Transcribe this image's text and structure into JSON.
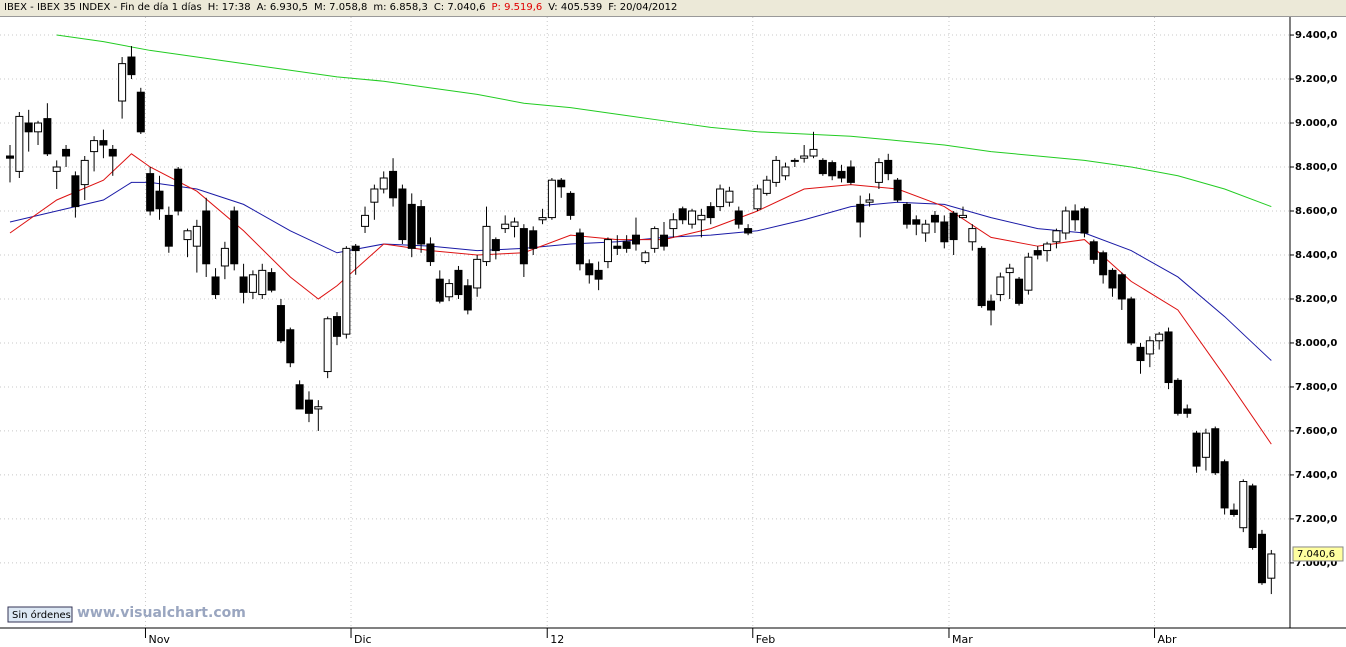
{
  "chart_data": {
    "type": "candlestick",
    "header": [
      {
        "text": "IBEX - IBEX 35 INDEX - Fin de día 1 días",
        "color": "#000000"
      },
      {
        "text": "H: 17:38",
        "color": "#000000"
      },
      {
        "text": "A: 6.930,5",
        "color": "#000000"
      },
      {
        "text": "M: 7.058,8",
        "color": "#000000"
      },
      {
        "text": "m: 6.858,3",
        "color": "#000000"
      },
      {
        "text": "C: 7.040,6",
        "color": "#000000"
      },
      {
        "text": "P: 9.519,6",
        "color": "#e00000"
      },
      {
        "text": "V: 405.539",
        "color": "#000000"
      },
      {
        "text": "F: 20/04/2012",
        "color": "#000000"
      }
    ],
    "orders_label": "Sin órdenes",
    "watermark": "www.visualchart.com",
    "last_price": {
      "value": 7040.6,
      "label": "7.040,6"
    },
    "categories": [
      null,
      null,
      null,
      null,
      null,
      null,
      null,
      null,
      null,
      null,
      null,
      null,
      null,
      null,
      null,
      "Nov",
      null,
      null,
      null,
      null,
      null,
      null,
      null,
      null,
      null,
      null,
      null,
      null,
      null,
      null,
      null,
      null,
      null,
      null,
      null,
      null,
      null,
      "Dic",
      null,
      null,
      null,
      null,
      null,
      null,
      null,
      null,
      null,
      null,
      null,
      null,
      null,
      null,
      null,
      null,
      null,
      null,
      null,
      null,
      "12",
      null,
      null,
      null,
      null,
      null,
      null,
      null,
      null,
      null,
      null,
      null,
      null,
      null,
      null,
      null,
      null,
      null,
      null,
      null,
      null,
      null,
      "Feb",
      null,
      null,
      null,
      null,
      null,
      null,
      null,
      null,
      null,
      null,
      null,
      null,
      null,
      null,
      null,
      null,
      null,
      null,
      null,
      null,
      "Mar",
      null,
      null,
      null,
      null,
      null,
      null,
      null,
      null,
      null,
      null,
      null,
      null,
      null,
      null,
      null,
      null,
      null,
      null,
      null,
      null,
      null,
      "Abr",
      null,
      null,
      null,
      null,
      null,
      null,
      null,
      null,
      null,
      null,
      null,
      null
    ],
    "open": [
      8850,
      8780,
      9000,
      8960,
      9020,
      8780,
      8880,
      8760,
      8720,
      8870,
      8920,
      8880,
      9100,
      9300,
      9140,
      8770,
      8690,
      8580,
      8790,
      8470,
      8440,
      8600,
      8300,
      8350,
      8600,
      8300,
      8230,
      8220,
      8320,
      8170,
      8060,
      7810,
      7740,
      7700,
      7870,
      8120,
      8040,
      8440,
      8530,
      8640,
      8700,
      8780,
      8700,
      8630,
      8620,
      8450,
      8290,
      8210,
      8330,
      8260,
      8250,
      8370,
      8470,
      8520,
      8530,
      8520,
      8510,
      8560,
      8570,
      8740,
      8680,
      8500,
      8360,
      8330,
      8370,
      8440,
      8460,
      8490,
      8370,
      8430,
      8490,
      8520,
      8610,
      8540,
      8560,
      8620,
      8620,
      8640,
      8600,
      8520,
      8610,
      8680,
      8730,
      8760,
      8830,
      8840,
      8850,
      8830,
      8820,
      8780,
      8800,
      8630,
      8640,
      8730,
      8830,
      8740,
      8630,
      8560,
      8500,
      8580,
      8550,
      8590,
      8570,
      8460,
      8430,
      8190,
      8220,
      8320,
      8290,
      8240,
      8420,
      8420,
      8460,
      8500,
      8600,
      8610,
      8460,
      8410,
      8330,
      8310,
      8200,
      7980,
      7950,
      8010,
      8050,
      7830,
      7700,
      7590,
      7480,
      7610,
      7460,
      7240,
      7160,
      7350,
      7130,
      6930.5
    ],
    "high": [
      8900,
      9050,
      9060,
      9010,
      9090,
      8830,
      8900,
      8780,
      8850,
      8940,
      8970,
      8900,
      9300,
      9350,
      9160,
      8800,
      8760,
      8620,
      8800,
      8520,
      8560,
      8660,
      8340,
      8460,
      8620,
      8360,
      8330,
      8360,
      8340,
      8200,
      8070,
      7830,
      7780,
      7740,
      8120,
      8140,
      8440,
      8450,
      8620,
      8720,
      8780,
      8840,
      8720,
      8680,
      8650,
      8480,
      8330,
      8290,
      8350,
      8290,
      8400,
      8620,
      8480,
      8580,
      8570,
      8540,
      8530,
      8610,
      8750,
      8750,
      8690,
      8520,
      8380,
      8370,
      8480,
      8490,
      8490,
      8570,
      8420,
      8530,
      8550,
      8590,
      8620,
      8610,
      8610,
      8640,
      8720,
      8710,
      8620,
      8540,
      8720,
      8760,
      8850,
      8820,
      8840,
      8900,
      8960,
      8840,
      8830,
      8810,
      8830,
      8670,
      8680,
      8840,
      8860,
      8750,
      8640,
      8580,
      8560,
      8600,
      8580,
      8600,
      8620,
      8540,
      8440,
      8220,
      8320,
      8360,
      8300,
      8410,
      8440,
      8460,
      8520,
      8620,
      8630,
      8620,
      8470,
      8420,
      8340,
      8320,
      8210,
      8000,
      8030,
      8050,
      8070,
      7840,
      7720,
      7600,
      7610,
      7620,
      7470,
      7270,
      7380,
      7360,
      7150,
      7058.8
    ],
    "low": [
      8730,
      8750,
      8870,
      8900,
      8850,
      8700,
      8800,
      8570,
      8650,
      8780,
      8840,
      8760,
      9020,
      9200,
      8950,
      8580,
      8560,
      8410,
      8580,
      8390,
      8320,
      8300,
      8200,
      8290,
      8330,
      8180,
      8200,
      8200,
      8230,
      8000,
      7890,
      7700,
      7640,
      7600,
      7840,
      7990,
      8020,
      8310,
      8500,
      8560,
      8680,
      8620,
      8450,
      8390,
      8410,
      8350,
      8180,
      8190,
      8200,
      8130,
      8210,
      8350,
      8380,
      8500,
      8480,
      8300,
      8400,
      8540,
      8560,
      8660,
      8560,
      8330,
      8270,
      8240,
      8340,
      8400,
      8410,
      8420,
      8360,
      8410,
      8420,
      8480,
      8540,
      8520,
      8480,
      8540,
      8600,
      8620,
      8520,
      8490,
      8600,
      8670,
      8710,
      8740,
      8800,
      8820,
      8840,
      8760,
      8740,
      8730,
      8720,
      8480,
      8620,
      8700,
      8740,
      8640,
      8520,
      8490,
      8460,
      8500,
      8430,
      8400,
      8570,
      8420,
      8160,
      8080,
      8190,
      8200,
      8170,
      8220,
      8380,
      8370,
      8430,
      8470,
      8510,
      8480,
      8360,
      8270,
      8210,
      8150,
      7990,
      7860,
      7890,
      7970,
      7790,
      7670,
      7660,
      7410,
      7420,
      7400,
      7220,
      7210,
      7140,
      7060,
      6900,
      6858.3
    ],
    "close": [
      8840,
      9030,
      8960,
      9000,
      8860,
      8800,
      8850,
      8620,
      8830,
      8920,
      8900,
      8850,
      9270,
      9220,
      8960,
      8600,
      8610,
      8440,
      8600,
      8510,
      8530,
      8360,
      8220,
      8430,
      8360,
      8230,
      8310,
      8330,
      8240,
      8010,
      7910,
      7700,
      7680,
      7710,
      8110,
      8030,
      8430,
      8420,
      8580,
      8700,
      8750,
      8660,
      8470,
      8430,
      8450,
      8370,
      8190,
      8270,
      8220,
      8150,
      8380,
      8530,
      8420,
      8540,
      8550,
      8360,
      8430,
      8570,
      8740,
      8710,
      8580,
      8360,
      8310,
      8290,
      8470,
      8430,
      8430,
      8450,
      8410,
      8520,
      8440,
      8560,
      8560,
      8600,
      8580,
      8570,
      8700,
      8690,
      8540,
      8500,
      8700,
      8740,
      8830,
      8800,
      8830,
      8850,
      8880,
      8770,
      8760,
      8750,
      8730,
      8550,
      8650,
      8820,
      8770,
      8650,
      8540,
      8540,
      8540,
      8550,
      8460,
      8470,
      8580,
      8520,
      8170,
      8150,
      8300,
      8340,
      8180,
      8390,
      8400,
      8450,
      8510,
      8600,
      8560,
      8500,
      8380,
      8310,
      8250,
      8200,
      8000,
      7920,
      8010,
      8040,
      7820,
      7680,
      7680,
      7440,
      7590,
      7410,
      7250,
      7220,
      7370,
      7070,
      6910,
      7040.6
    ],
    "series": [
      {
        "color": "#22cc22",
        "x": [
          5,
          10,
          15,
          20,
          25,
          30,
          35,
          40,
          45,
          50,
          55,
          60,
          65,
          70,
          75,
          80,
          85,
          90,
          95,
          100,
          105,
          110,
          115,
          120,
          125,
          130,
          135
        ],
        "values": [
          9400,
          9370,
          9330,
          9300,
          9270,
          9240,
          9210,
          9190,
          9160,
          9130,
          9090,
          9070,
          9040,
          9010,
          8980,
          8960,
          8950,
          8940,
          8920,
          8900,
          8870,
          8850,
          8830,
          8800,
          8760,
          8700,
          8620
        ]
      },
      {
        "color": "#1a1aa6",
        "x": [
          0,
          5,
          10,
          13,
          15,
          20,
          25,
          30,
          35,
          40,
          45,
          50,
          55,
          60,
          65,
          70,
          75,
          80,
          85,
          90,
          95,
          100,
          105,
          110,
          115,
          120,
          125,
          130,
          135
        ],
        "values": [
          8550,
          8600,
          8650,
          8730,
          8730,
          8700,
          8630,
          8510,
          8410,
          8450,
          8440,
          8420,
          8430,
          8450,
          8460,
          8480,
          8490,
          8510,
          8560,
          8620,
          8640,
          8630,
          8570,
          8520,
          8500,
          8420,
          8300,
          8120,
          7920
        ]
      },
      {
        "color": "#dd1111",
        "x": [
          0,
          5,
          10,
          13,
          15,
          20,
          25,
          30,
          33,
          35,
          40,
          45,
          50,
          55,
          60,
          65,
          70,
          75,
          80,
          85,
          90,
          95,
          100,
          105,
          110,
          115,
          120,
          125,
          130,
          135
        ],
        "values": [
          8500,
          8650,
          8740,
          8860,
          8800,
          8690,
          8510,
          8300,
          8200,
          8260,
          8450,
          8420,
          8400,
          8410,
          8490,
          8470,
          8470,
          8520,
          8600,
          8700,
          8720,
          8700,
          8620,
          8480,
          8440,
          8470,
          8280,
          8150,
          7850,
          7540
        ]
      }
    ],
    "xlim": [
      -1.07,
      137
    ],
    "ylim": [
      6704,
      9482
    ],
    "yticks": [
      {
        "value": 7000,
        "label": "7.000,0"
      },
      {
        "value": 7200,
        "label": "7.200,0"
      },
      {
        "value": 7400,
        "label": "7.400,0"
      },
      {
        "value": 7600,
        "label": "7.600,0"
      },
      {
        "value": 7800,
        "label": "7.800,0"
      },
      {
        "value": 8000,
        "label": "8.000,0"
      },
      {
        "value": 8200,
        "label": "8.200,0"
      },
      {
        "value": 8400,
        "label": "8.400,0"
      },
      {
        "value": 8600,
        "label": "8.600,0"
      },
      {
        "value": 8800,
        "label": "8.800,0"
      },
      {
        "value": 9000,
        "label": "9.000,0"
      },
      {
        "value": 9200,
        "label": "9.200,0"
      },
      {
        "value": 9400,
        "label": "9.400,0"
      }
    ],
    "grid": true
  }
}
